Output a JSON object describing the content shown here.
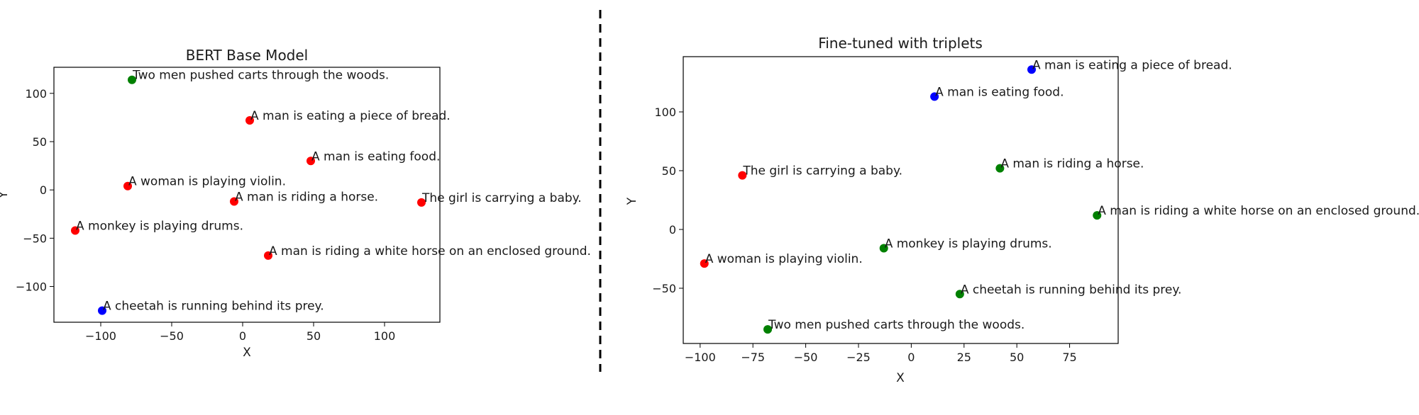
{
  "chart_data": [
    {
      "type": "scatter",
      "title": "BERT Base Model",
      "xlabel": "X",
      "ylabel": "Y",
      "xlim": [
        -133,
        139
      ],
      "ylim": [
        -137,
        127
      ],
      "xticks": [
        -100,
        -50,
        0,
        50,
        100
      ],
      "yticks": [
        -100,
        -50,
        0,
        50,
        100
      ],
      "points": [
        {
          "label": "Two men pushed carts through the woods.",
          "x": -78,
          "y": 114,
          "color": "#008000"
        },
        {
          "label": "A man is eating a piece of bread.",
          "x": 5,
          "y": 72,
          "color": "#ff0000"
        },
        {
          "label": "A man is eating food.",
          "x": 48,
          "y": 30,
          "color": "#ff0000"
        },
        {
          "label": "A woman is playing violin.",
          "x": -81,
          "y": 4,
          "color": "#ff0000"
        },
        {
          "label": "A man is riding a horse.",
          "x": -6,
          "y": -12,
          "color": "#ff0000"
        },
        {
          "label": "The girl is carrying a baby.",
          "x": 126,
          "y": -13,
          "color": "#ff0000"
        },
        {
          "label": "A monkey is playing drums.",
          "x": -118,
          "y": -42,
          "color": "#ff0000"
        },
        {
          "label": "A man is riding a white horse on an enclosed ground.",
          "x": 18,
          "y": -68,
          "color": "#ff0000"
        },
        {
          "label": "A cheetah is running behind its prey.",
          "x": -99,
          "y": -125,
          "color": "#0000ff"
        }
      ]
    },
    {
      "type": "scatter",
      "title": "Fine-tuned with triplets",
      "xlabel": "X",
      "ylabel": "Y",
      "xlim": [
        -108,
        98
      ],
      "ylim": [
        -97,
        147
      ],
      "xticks": [
        -100,
        -75,
        -50,
        -25,
        0,
        25,
        50,
        75
      ],
      "yticks": [
        -50,
        0,
        50,
        100
      ],
      "points": [
        {
          "label": "A man is eating a piece of bread.",
          "x": 57,
          "y": 136,
          "color": "#0000ff"
        },
        {
          "label": "A man is eating food.",
          "x": 11,
          "y": 113,
          "color": "#0000ff"
        },
        {
          "label": "The girl is carrying a baby.",
          "x": -80,
          "y": 46,
          "color": "#ff0000"
        },
        {
          "label": "A man is riding a horse.",
          "x": 42,
          "y": 52,
          "color": "#008000"
        },
        {
          "label": "A man is riding a white horse on an enclosed ground.",
          "x": 88,
          "y": 12,
          "color": "#008000"
        },
        {
          "label": "A monkey is playing drums.",
          "x": -13,
          "y": -16,
          "color": "#008000"
        },
        {
          "label": "A woman is playing violin.",
          "x": -98,
          "y": -29,
          "color": "#ff0000"
        },
        {
          "label": "A cheetah is running behind its prey.",
          "x": 23,
          "y": -55,
          "color": "#008000"
        },
        {
          "label": "Two men pushed carts through the woods.",
          "x": -68,
          "y": -85,
          "color": "#008000"
        }
      ]
    }
  ],
  "divider": {
    "style": "dashed",
    "color": "#000000"
  }
}
